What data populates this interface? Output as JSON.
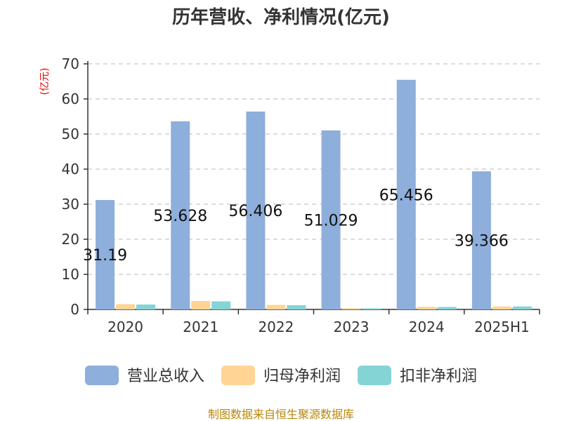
{
  "chart_data": {
    "type": "bar",
    "title": "历年营收、净利情况(亿元)",
    "ylabel": "(亿元)",
    "xlabel": "",
    "ylim": [
      0,
      70
    ],
    "yticks": [
      0,
      10,
      20,
      30,
      40,
      50,
      60,
      70
    ],
    "grid": true,
    "legend_position": "bottom",
    "categories": [
      "2020",
      "2021",
      "2022",
      "2023",
      "2024",
      "2025H1"
    ],
    "series": [
      {
        "name": "营业总收入",
        "color": "#8eaedb",
        "values": [
          31.19,
          53.628,
          56.406,
          51.029,
          65.456,
          39.366
        ],
        "labels": [
          "31.19",
          "53.628",
          "56.406",
          "51.029",
          "65.456",
          "39.366"
        ]
      },
      {
        "name": "归母净利润",
        "color": "#ffd494",
        "values": [
          1.5,
          2.4,
          1.3,
          0.35,
          0.75,
          0.85
        ]
      },
      {
        "name": "扣非净利润",
        "color": "#84d4d6",
        "values": [
          1.4,
          2.3,
          1.2,
          0.3,
          0.7,
          0.85
        ]
      }
    ]
  },
  "source_text": "制图数据来自恒生聚源数据库"
}
